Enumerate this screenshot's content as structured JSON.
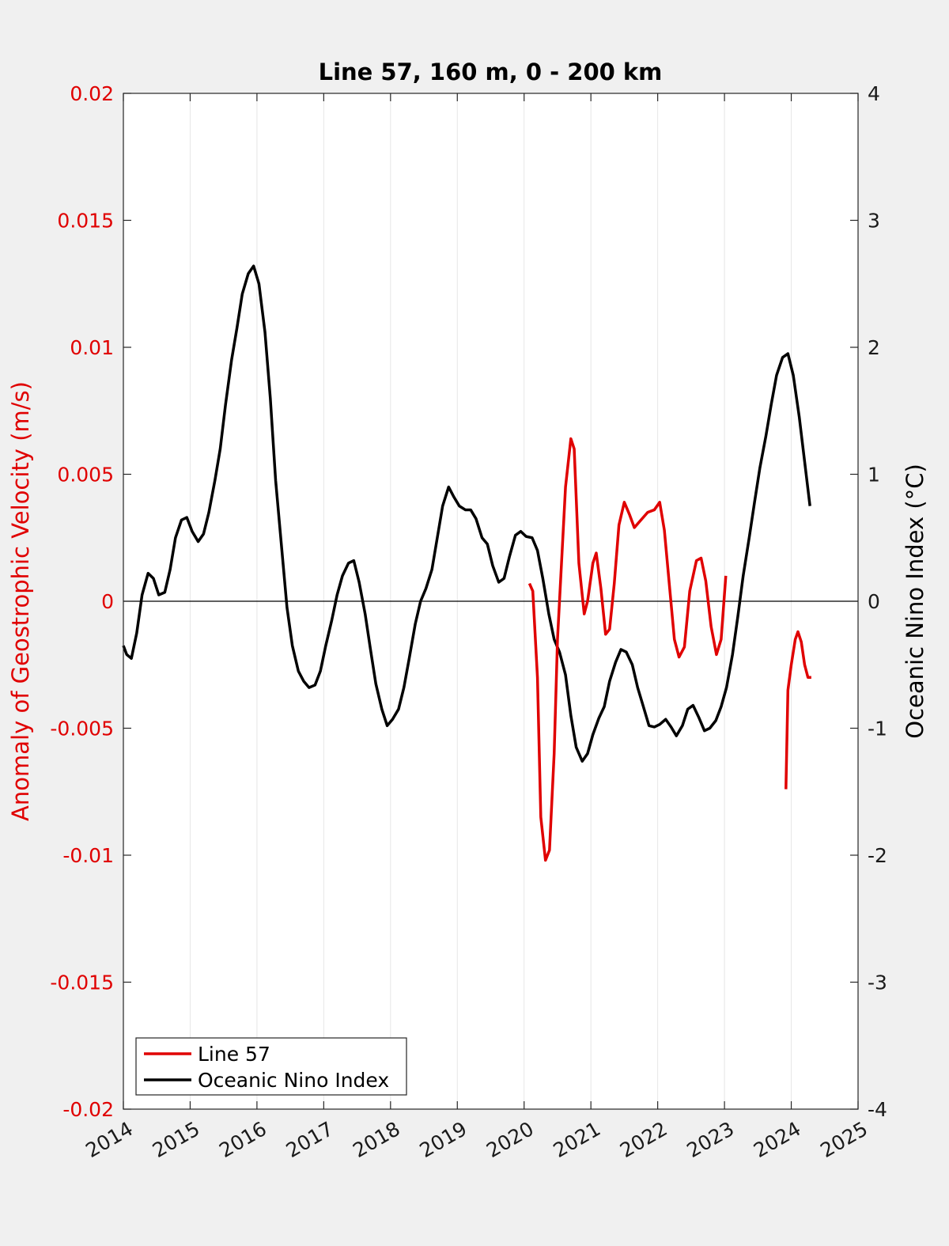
{
  "chart_data": {
    "type": "line",
    "title": "Line 57, 160 m, 0 - 200 km",
    "xlabel": "",
    "ylabel_left": "Anomaly of Geostrophic Velocity (m/s)",
    "ylabel_right": "Oceanic Nino Index (°C)",
    "xlim": [
      2014,
      2025
    ],
    "ylim_left": [
      -0.02,
      0.02
    ],
    "ylim_right": [
      -4,
      4
    ],
    "x_ticks": [
      "2014",
      "2015",
      "2016",
      "2017",
      "2018",
      "2019",
      "2020",
      "2021",
      "2022",
      "2023",
      "2024",
      "2025"
    ],
    "y_left_ticks": [
      "0.02",
      "0.015",
      "0.01",
      "0.005",
      "0",
      "-0.005",
      "-0.01",
      "-0.015",
      "-0.02"
    ],
    "y_right_ticks": [
      "4",
      "3",
      "2",
      "1",
      "0",
      "-1",
      "-2",
      "-3",
      "-4"
    ],
    "grid": "vertical",
    "legend_position": "bottom-left",
    "colors": {
      "line57": "#e00000",
      "oni": "#000000",
      "left_axis": "#e00000"
    },
    "series": [
      {
        "name": "Line 57",
        "axis": "left",
        "segments": [
          [
            [
              2020.08,
              0.0007
            ],
            [
              2020.13,
              0.0004
            ],
            [
              2020.2,
              -0.003
            ],
            [
              2020.25,
              -0.0085
            ],
            [
              2020.32,
              -0.0102
            ],
            [
              2020.38,
              -0.0098
            ],
            [
              2020.45,
              -0.006
            ],
            [
              2020.5,
              -0.0015
            ],
            [
              2020.55,
              0.001
            ],
            [
              2020.62,
              0.0045
            ],
            [
              2020.7,
              0.0064
            ],
            [
              2020.75,
              0.006
            ],
            [
              2020.82,
              0.0015
            ],
            [
              2020.9,
              -0.0005
            ],
            [
              2020.95,
              0.0
            ],
            [
              2021.03,
              0.0015
            ],
            [
              2021.08,
              0.0019
            ],
            [
              2021.15,
              0.0005
            ],
            [
              2021.22,
              -0.0013
            ],
            [
              2021.28,
              -0.0011
            ],
            [
              2021.35,
              0.0007
            ],
            [
              2021.42,
              0.003
            ],
            [
              2021.5,
              0.0039
            ],
            [
              2021.58,
              0.0034
            ],
            [
              2021.65,
              0.0029
            ],
            [
              2021.75,
              0.0032
            ],
            [
              2021.85,
              0.0035
            ],
            [
              2021.95,
              0.0036
            ],
            [
              2022.03,
              0.0039
            ],
            [
              2022.1,
              0.0028
            ],
            [
              2022.18,
              0.0005
            ],
            [
              2022.25,
              -0.0015
            ],
            [
              2022.32,
              -0.0022
            ],
            [
              2022.4,
              -0.0018
            ],
            [
              2022.48,
              0.0004
            ],
            [
              2022.58,
              0.0016
            ],
            [
              2022.65,
              0.0017
            ],
            [
              2022.72,
              0.0008
            ],
            [
              2022.8,
              -0.001
            ],
            [
              2022.88,
              -0.0021
            ],
            [
              2022.95,
              -0.0015
            ],
            [
              2023.02,
              0.001
            ]
          ],
          [
            [
              2023.92,
              -0.0074
            ],
            [
              2023.95,
              -0.0035
            ],
            [
              2024.0,
              -0.0025
            ],
            [
              2024.06,
              -0.0015
            ],
            [
              2024.1,
              -0.0012
            ],
            [
              2024.15,
              -0.0016
            ],
            [
              2024.2,
              -0.0025
            ],
            [
              2024.25,
              -0.003
            ],
            [
              2024.3,
              -0.003
            ]
          ]
        ]
      },
      {
        "name": "Oceanic Nino Index",
        "axis": "right",
        "points": [
          [
            2014.0,
            -0.35
          ],
          [
            2014.05,
            -0.42
          ],
          [
            2014.12,
            -0.45
          ],
          [
            2014.2,
            -0.25
          ],
          [
            2014.28,
            0.05
          ],
          [
            2014.37,
            0.22
          ],
          [
            2014.45,
            0.18
          ],
          [
            2014.53,
            0.05
          ],
          [
            2014.62,
            0.07
          ],
          [
            2014.7,
            0.25
          ],
          [
            2014.78,
            0.5
          ],
          [
            2014.87,
            0.64
          ],
          [
            2014.95,
            0.66
          ],
          [
            2015.03,
            0.55
          ],
          [
            2015.12,
            0.47
          ],
          [
            2015.2,
            0.53
          ],
          [
            2015.28,
            0.7
          ],
          [
            2015.37,
            0.95
          ],
          [
            2015.45,
            1.2
          ],
          [
            2015.53,
            1.55
          ],
          [
            2015.62,
            1.9
          ],
          [
            2015.7,
            2.15
          ],
          [
            2015.78,
            2.42
          ],
          [
            2015.87,
            2.58
          ],
          [
            2015.95,
            2.64
          ],
          [
            2016.03,
            2.5
          ],
          [
            2016.12,
            2.12
          ],
          [
            2016.2,
            1.6
          ],
          [
            2016.28,
            0.95
          ],
          [
            2016.37,
            0.42
          ],
          [
            2016.45,
            -0.05
          ],
          [
            2016.53,
            -0.35
          ],
          [
            2016.62,
            -0.55
          ],
          [
            2016.7,
            -0.63
          ],
          [
            2016.78,
            -0.68
          ],
          [
            2016.87,
            -0.66
          ],
          [
            2016.95,
            -0.55
          ],
          [
            2017.03,
            -0.35
          ],
          [
            2017.12,
            -0.15
          ],
          [
            2017.2,
            0.05
          ],
          [
            2017.28,
            0.2
          ],
          [
            2017.37,
            0.3
          ],
          [
            2017.45,
            0.32
          ],
          [
            2017.53,
            0.15
          ],
          [
            2017.62,
            -0.1
          ],
          [
            2017.7,
            -0.38
          ],
          [
            2017.78,
            -0.65
          ],
          [
            2017.87,
            -0.85
          ],
          [
            2017.95,
            -0.98
          ],
          [
            2018.03,
            -0.93
          ],
          [
            2018.12,
            -0.85
          ],
          [
            2018.2,
            -0.68
          ],
          [
            2018.28,
            -0.45
          ],
          [
            2018.37,
            -0.18
          ],
          [
            2018.45,
            0.0
          ],
          [
            2018.53,
            0.1
          ],
          [
            2018.62,
            0.25
          ],
          [
            2018.7,
            0.5
          ],
          [
            2018.78,
            0.75
          ],
          [
            2018.87,
            0.9
          ],
          [
            2018.95,
            0.82
          ],
          [
            2019.03,
            0.75
          ],
          [
            2019.12,
            0.72
          ],
          [
            2019.2,
            0.72
          ],
          [
            2019.28,
            0.65
          ],
          [
            2019.37,
            0.5
          ],
          [
            2019.45,
            0.45
          ],
          [
            2019.53,
            0.28
          ],
          [
            2019.62,
            0.15
          ],
          [
            2019.7,
            0.18
          ],
          [
            2019.78,
            0.35
          ],
          [
            2019.87,
            0.52
          ],
          [
            2019.95,
            0.55
          ],
          [
            2020.03,
            0.51
          ],
          [
            2020.12,
            0.5
          ],
          [
            2020.2,
            0.4
          ],
          [
            2020.28,
            0.18
          ],
          [
            2020.37,
            -0.1
          ],
          [
            2020.45,
            -0.3
          ],
          [
            2020.53,
            -0.4
          ],
          [
            2020.62,
            -0.58
          ],
          [
            2020.7,
            -0.9
          ],
          [
            2020.78,
            -1.15
          ],
          [
            2020.87,
            -1.26
          ],
          [
            2020.95,
            -1.2
          ],
          [
            2021.03,
            -1.05
          ],
          [
            2021.12,
            -0.92
          ],
          [
            2021.2,
            -0.83
          ],
          [
            2021.28,
            -0.63
          ],
          [
            2021.37,
            -0.48
          ],
          [
            2021.45,
            -0.38
          ],
          [
            2021.53,
            -0.4
          ],
          [
            2021.62,
            -0.5
          ],
          [
            2021.7,
            -0.68
          ],
          [
            2021.78,
            -0.82
          ],
          [
            2021.87,
            -0.98
          ],
          [
            2021.95,
            -0.99
          ],
          [
            2022.03,
            -0.97
          ],
          [
            2022.12,
            -0.93
          ],
          [
            2022.2,
            -0.99
          ],
          [
            2022.28,
            -1.06
          ],
          [
            2022.37,
            -0.98
          ],
          [
            2022.45,
            -0.85
          ],
          [
            2022.53,
            -0.82
          ],
          [
            2022.62,
            -0.92
          ],
          [
            2022.7,
            -1.02
          ],
          [
            2022.78,
            -1.0
          ],
          [
            2022.87,
            -0.94
          ],
          [
            2022.95,
            -0.83
          ],
          [
            2023.03,
            -0.68
          ],
          [
            2023.12,
            -0.42
          ],
          [
            2023.2,
            -0.12
          ],
          [
            2023.28,
            0.2
          ],
          [
            2023.37,
            0.5
          ],
          [
            2023.45,
            0.78
          ],
          [
            2023.53,
            1.05
          ],
          [
            2023.62,
            1.3
          ],
          [
            2023.7,
            1.55
          ],
          [
            2023.78,
            1.78
          ],
          [
            2023.87,
            1.92
          ],
          [
            2023.95,
            1.95
          ],
          [
            2024.03,
            1.78
          ],
          [
            2024.12,
            1.45
          ],
          [
            2024.2,
            1.1
          ],
          [
            2024.28,
            0.75
          ]
        ]
      }
    ]
  }
}
